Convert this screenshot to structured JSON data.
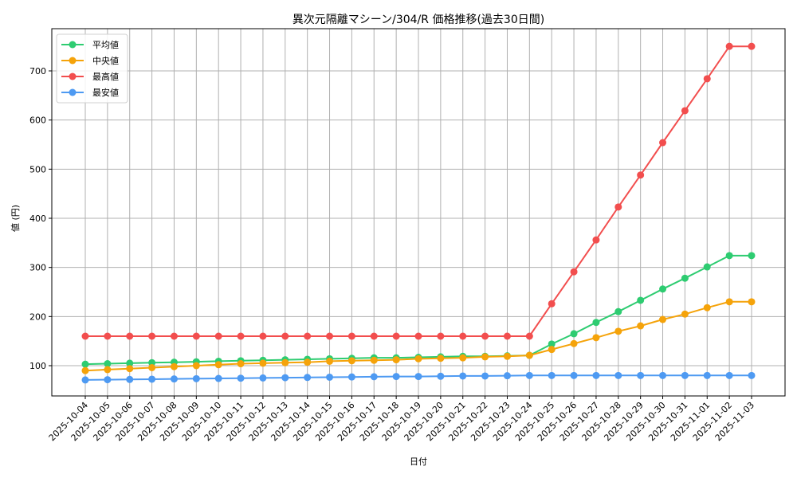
{
  "chart_data": {
    "type": "line",
    "title": "異次元隔離マシーン/304/R 価格推移(過去30日間)",
    "xlabel": "日付",
    "ylabel": "値 (円)",
    "ylim": [
      35,
      780
    ],
    "yticks": [
      100,
      200,
      300,
      400,
      500,
      600,
      700
    ],
    "grid": true,
    "legend_position": "upper left",
    "categories": [
      "2025-10-04",
      "2025-10-05",
      "2025-10-06",
      "2025-10-07",
      "2025-10-08",
      "2025-10-09",
      "2025-10-10",
      "2025-10-11",
      "2025-10-12",
      "2025-10-13",
      "2025-10-14",
      "2025-10-15",
      "2025-10-16",
      "2025-10-17",
      "2025-10-18",
      "2025-10-19",
      "2025-10-20",
      "2025-10-21",
      "2025-10-22",
      "2025-10-23",
      "2025-10-24",
      "2025-10-25",
      "2025-10-26",
      "2025-10-27",
      "2025-10-28",
      "2025-10-29",
      "2025-10-30",
      "2025-10-31",
      "2025-11-01",
      "2025-11-02",
      "2025-11-03"
    ],
    "series": [
      {
        "name": "平均値",
        "color": "#2ecc71",
        "values": [
          103,
          104,
          105,
          106,
          107,
          108,
          109,
          110,
          111,
          112,
          113,
          114,
          115,
          116,
          116,
          117,
          118,
          119,
          119,
          120,
          121,
          144,
          165,
          188,
          210,
          233,
          256,
          278,
          301,
          324,
          324
        ]
      },
      {
        "name": "中央値",
        "color": "#f5a30a",
        "values": [
          90,
          92,
          94,
          96,
          98,
          100,
          102,
          104,
          105,
          106,
          107,
          109,
          110,
          111,
          112,
          114,
          115,
          116,
          118,
          119,
          121,
          133,
          145,
          157,
          170,
          181,
          194,
          205,
          218,
          230,
          230
        ]
      },
      {
        "name": "最高値",
        "color": "#f24e4e",
        "values": [
          160,
          160,
          160,
          160,
          160,
          160,
          160,
          160,
          160,
          160,
          160,
          160,
          160,
          160,
          160,
          160,
          160,
          160,
          160,
          160,
          160,
          226,
          291,
          356,
          423,
          488,
          554,
          619,
          684,
          750,
          750
        ]
      },
      {
        "name": "最安値",
        "color": "#4e9af2",
        "values": [
          71,
          71.5,
          72,
          72.5,
          73,
          73.5,
          74,
          74.5,
          75,
          75.5,
          76,
          76.5,
          77,
          77.5,
          78,
          78,
          78.5,
          79,
          79,
          79.5,
          80,
          80,
          80,
          80,
          80,
          80,
          80,
          80,
          80,
          80,
          80
        ]
      }
    ]
  }
}
